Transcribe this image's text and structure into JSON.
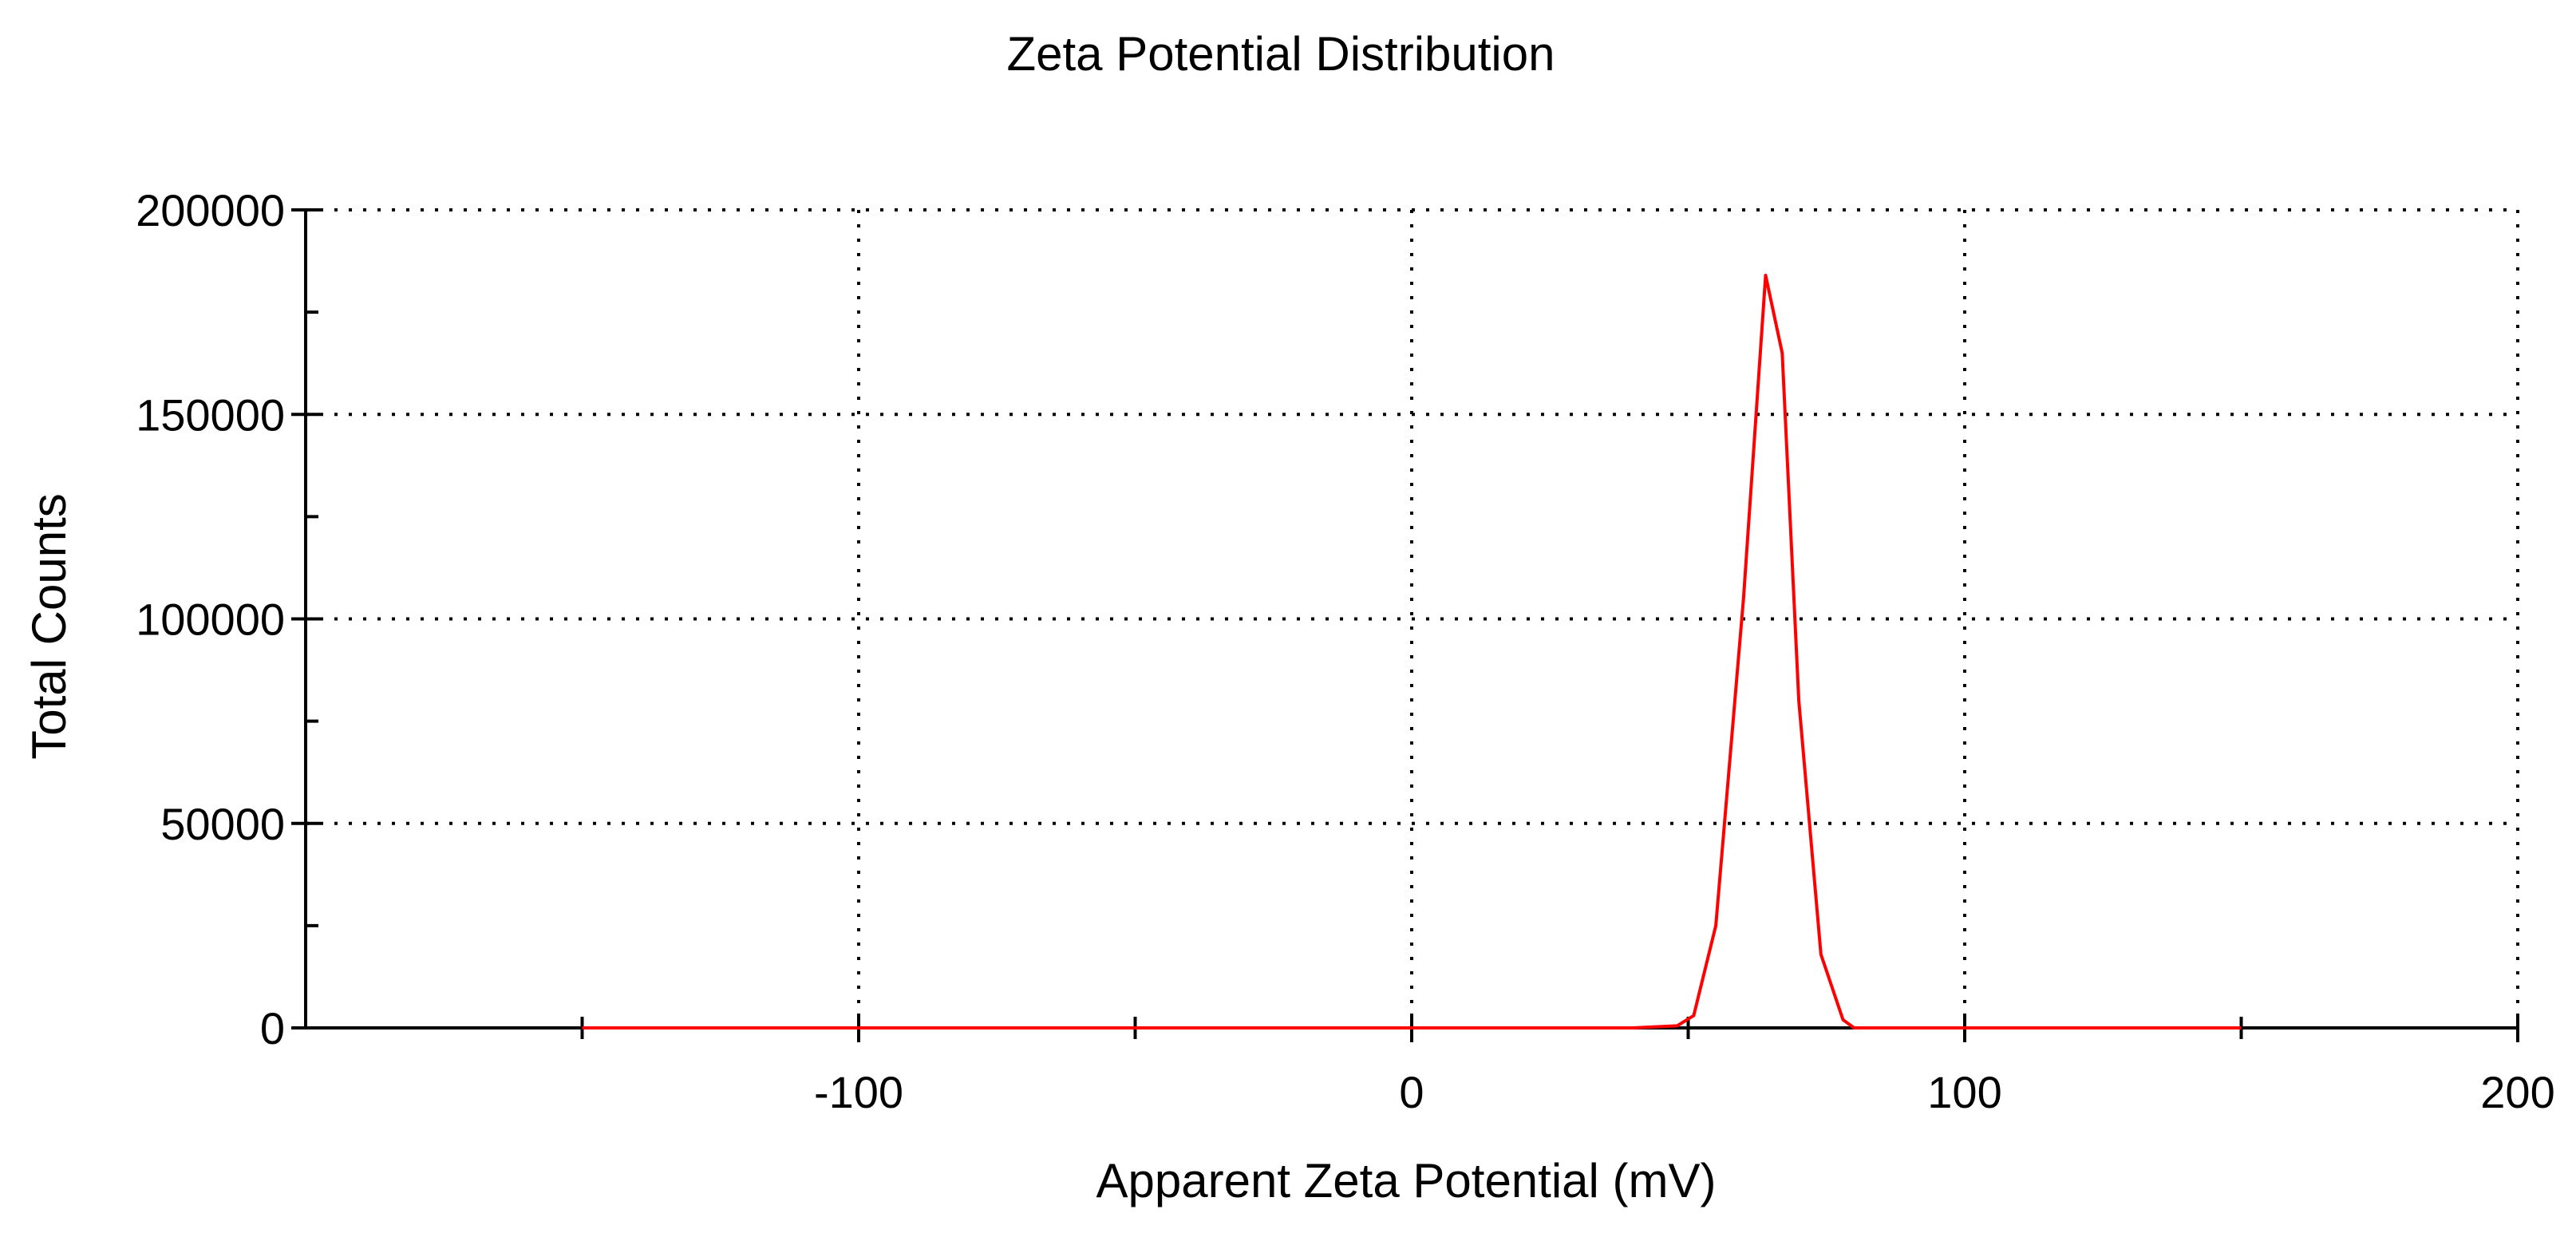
{
  "chart_data": {
    "type": "line",
    "title": "Zeta Potential Distribution",
    "xlabel": "Apparent Zeta Potential (mV)",
    "ylabel": "Total Counts",
    "xlim": [
      -200,
      200
    ],
    "ylim": [
      0,
      200000
    ],
    "x_ticks": [
      -100,
      0,
      100,
      200
    ],
    "x_tick_labels": [
      "-100",
      "0",
      "100",
      "200"
    ],
    "x_minor_ticks": [
      -150,
      -50,
      50,
      150
    ],
    "y_ticks": [
      0,
      50000,
      100000,
      150000,
      200000
    ],
    "y_tick_labels": [
      "0",
      "50000",
      "100000",
      "150000",
      "200000"
    ],
    "y_minor_ticks": [
      25000,
      75000,
      125000,
      175000
    ],
    "grid": "dotted",
    "legend": "none",
    "series": [
      {
        "color": "#ff0000",
        "x": [
          -150,
          -100,
          -50,
          0,
          40,
          48,
          51,
          55,
          60,
          64,
          67,
          70,
          74,
          78,
          80,
          90,
          100,
          150
        ],
        "y": [
          0,
          0,
          0,
          0,
          0,
          500,
          3000,
          25000,
          105000,
          184000,
          165000,
          80000,
          18000,
          2000,
          0,
          0,
          0,
          0
        ]
      }
    ]
  }
}
